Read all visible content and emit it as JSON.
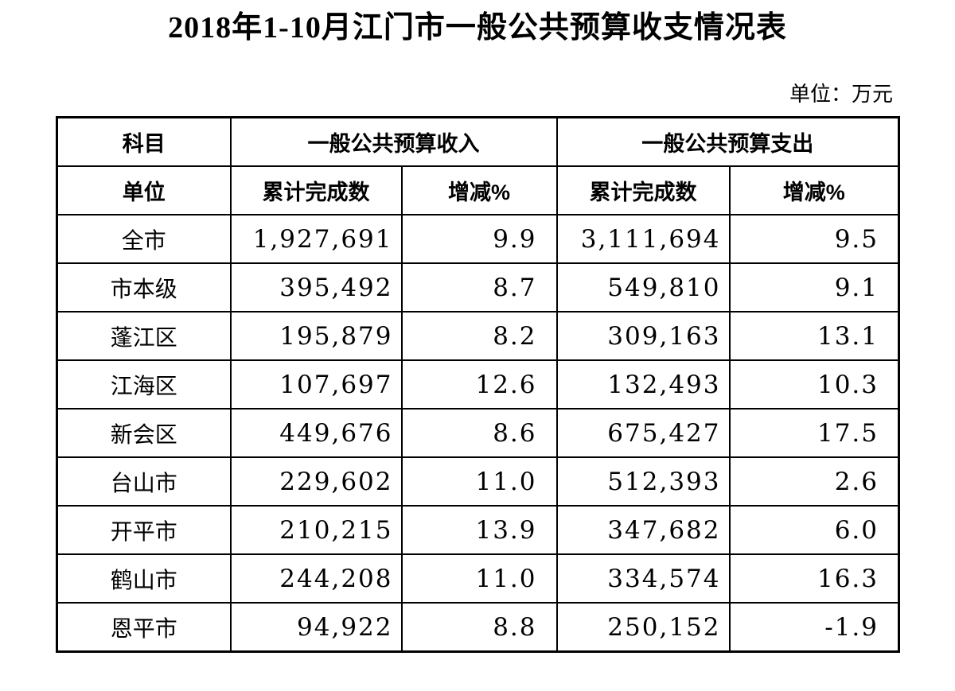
{
  "page": {
    "title": "2018年1-10月江门市一般公共预算收支情况表",
    "unit_note": "单位：万元"
  },
  "colors": {
    "text": "#000000",
    "border": "#000000",
    "background": "#ffffff"
  },
  "table": {
    "header": {
      "subject": "科目",
      "unit": "单位",
      "revenue_group": "一般公共预算收入",
      "expenditure_group": "一般公共预算支出",
      "revenue_cumulative": "累计完成数",
      "revenue_change": "增减%",
      "expenditure_cumulative": "累计完成数",
      "expenditure_change": "增减%"
    },
    "rows": [
      {
        "region": "全市",
        "revenue": "1,927,691",
        "revenue_change": "9.9",
        "expenditure": "3,111,694",
        "expenditure_change": "9.5"
      },
      {
        "region": "市本级",
        "revenue": "395,492",
        "revenue_change": "8.7",
        "expenditure": "549,810",
        "expenditure_change": "9.1"
      },
      {
        "region": "蓬江区",
        "revenue": "195,879",
        "revenue_change": "8.2",
        "expenditure": "309,163",
        "expenditure_change": "13.1"
      },
      {
        "region": "江海区",
        "revenue": "107,697",
        "revenue_change": "12.6",
        "expenditure": "132,493",
        "expenditure_change": "10.3"
      },
      {
        "region": "新会区",
        "revenue": "449,676",
        "revenue_change": "8.6",
        "expenditure": "675,427",
        "expenditure_change": "17.5"
      },
      {
        "region": "台山市",
        "revenue": "229,602",
        "revenue_change": "11.0",
        "expenditure": "512,393",
        "expenditure_change": "2.6"
      },
      {
        "region": "开平市",
        "revenue": "210,215",
        "revenue_change": "13.9",
        "expenditure": "347,682",
        "expenditure_change": "6.0"
      },
      {
        "region": "鹤山市",
        "revenue": "244,208",
        "revenue_change": "11.0",
        "expenditure": "334,574",
        "expenditure_change": "16.3"
      },
      {
        "region": "恩平市",
        "revenue": "94,922",
        "revenue_change": "8.8",
        "expenditure": "250,152",
        "expenditure_change": "-1.9"
      }
    ]
  }
}
